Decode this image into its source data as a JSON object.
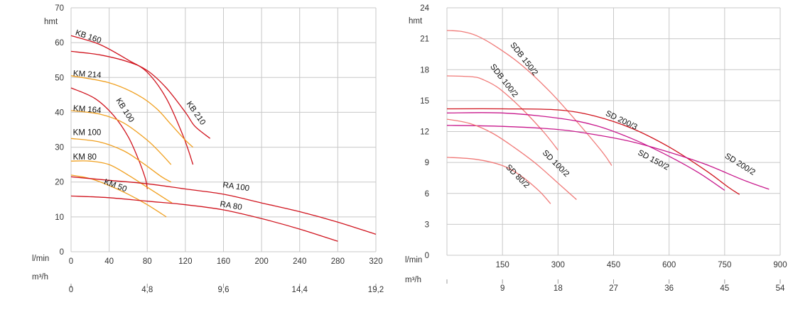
{
  "colors": {
    "red": "#d0141e",
    "orange": "#f0a020",
    "salmon": "#f07a78",
    "magenta": "#c8188c",
    "grid": "#c8c8c8"
  },
  "chart_data": [
    {
      "type": "line",
      "ylabel": "hmt",
      "flow_unit_label": "l/min",
      "m3h_unit_label": "m³/h",
      "xlim": [
        0,
        320
      ],
      "ylim": [
        0,
        70
      ],
      "x_ticks": [
        "0",
        "40",
        "80",
        "120",
        "160",
        "200",
        "240",
        "280",
        "320"
      ],
      "y_ticks": [
        "0",
        "10",
        "20",
        "30",
        "40",
        "50",
        "60",
        "70"
      ],
      "m3h_ticks": [
        "0",
        "4,8",
        "9,6",
        "14,4",
        "19,2"
      ],
      "grid": true,
      "series": [
        {
          "name": "KB 160",
          "color": "red",
          "x": [
            0,
            30,
            60,
            80,
            100,
            118,
            128
          ],
          "y": [
            62,
            59.5,
            55,
            51.5,
            44,
            33,
            25
          ]
        },
        {
          "name": "KB 210",
          "color": "red",
          "x": [
            0,
            30,
            60,
            80,
            100,
            120,
            130,
            146
          ],
          "y": [
            57.5,
            56.5,
            54.5,
            52,
            47,
            40,
            36,
            32.5
          ]
        },
        {
          "name": "KM 214",
          "color": "orange",
          "x": [
            0,
            40,
            70,
            90,
            105,
            120,
            128
          ],
          "y": [
            50.5,
            48.5,
            45,
            41,
            36.5,
            32,
            30
          ]
        },
        {
          "name": "KB 100",
          "color": "red",
          "x": [
            0,
            25,
            45,
            60,
            70,
            78,
            80
          ],
          "y": [
            47,
            44,
            39,
            33,
            27,
            21,
            18
          ]
        },
        {
          "name": "KM 164",
          "color": "orange",
          "x": [
            0,
            30,
            55,
            80,
            95,
            105
          ],
          "y": [
            40.5,
            39.5,
            37,
            32,
            28,
            25
          ]
        },
        {
          "name": "KM 100",
          "color": "orange",
          "x": [
            0,
            30,
            55,
            75,
            95,
            105
          ],
          "y": [
            32.5,
            31.5,
            29,
            25.5,
            21.5,
            20
          ]
        },
        {
          "name": "KM 80",
          "color": "orange",
          "x": [
            0,
            20,
            40,
            60,
            80,
            100,
            106
          ],
          "y": [
            26,
            26,
            25,
            22,
            18.5,
            15,
            14
          ]
        },
        {
          "name": "KM 50",
          "color": "orange",
          "x": [
            0,
            20,
            40,
            60,
            80,
            100
          ],
          "y": [
            22,
            21,
            19,
            16.5,
            13.5,
            10
          ]
        },
        {
          "name": "RA 100",
          "color": "red",
          "x": [
            0,
            40,
            80,
            120,
            160,
            200,
            240,
            280,
            320
          ],
          "y": [
            21.5,
            20.5,
            19.5,
            18,
            16.5,
            14,
            11.5,
            8.5,
            5
          ]
        },
        {
          "name": "RA 80",
          "color": "red",
          "x": [
            0,
            40,
            80,
            120,
            160,
            200,
            240,
            280
          ],
          "y": [
            16,
            15.5,
            14.5,
            13.5,
            12,
            9.5,
            6.5,
            3
          ]
        }
      ],
      "labels": [
        {
          "text": "KB 160",
          "x": 4,
          "y": 62.3,
          "rot": 19
        },
        {
          "text": "KB 210",
          "x": 121,
          "y": 42.5,
          "rot": 55
        },
        {
          "text": "KM 214",
          "x": 2,
          "y": 50.5,
          "rot": 4
        },
        {
          "text": "KB 100",
          "x": 47,
          "y": 43.5,
          "rot": 58
        },
        {
          "text": "KM 164",
          "x": 2,
          "y": 40.5,
          "rot": 5
        },
        {
          "text": "KM 100",
          "x": 2,
          "y": 33.5,
          "rot": 0
        },
        {
          "text": "KM 80",
          "x": 2,
          "y": 26.5,
          "rot": 0
        },
        {
          "text": "KM 50",
          "x": 34,
          "y": 19.5,
          "rot": 20
        },
        {
          "text": "RA 100",
          "x": 159,
          "y": 18.5,
          "rot": 8
        },
        {
          "text": "RA 80",
          "x": 156,
          "y": 13,
          "rot": 9
        }
      ]
    },
    {
      "type": "line",
      "ylabel": "hmt",
      "flow_unit_label": "l/min",
      "m3h_unit_label": "m³/h",
      "xlim": [
        0,
        900
      ],
      "ylim": [
        0,
        24
      ],
      "x_ticks": [
        "",
        "150",
        "300",
        "450",
        "600",
        "750",
        "900"
      ],
      "y_ticks": [
        "0",
        "3",
        "6",
        "9",
        "12",
        "15",
        "18",
        "21",
        "24"
      ],
      "m3h_ticks": [
        "",
        "9",
        "18",
        "27",
        "36",
        "45",
        "54"
      ],
      "grid": true,
      "series": [
        {
          "name": "SDB 150/2",
          "color": "salmon",
          "x": [
            0,
            40,
            80,
            130,
            200,
            280,
            350,
            420,
            445
          ],
          "y": [
            21.8,
            21.7,
            21.3,
            20.3,
            18.5,
            15.8,
            13,
            10,
            8.7
          ]
        },
        {
          "name": "SDB 100/2",
          "color": "salmon",
          "x": [
            0,
            70,
            100,
            140,
            200,
            260,
            300
          ],
          "y": [
            17.4,
            17.3,
            17,
            16.2,
            14.3,
            12,
            10.2
          ]
        },
        {
          "name": "SD 200/3",
          "color": "red",
          "x": [
            0,
            150,
            300,
            400,
            500,
            600,
            700,
            760,
            790
          ],
          "y": [
            14.2,
            14.2,
            14.1,
            13.5,
            12.3,
            10.5,
            8.2,
            6.6,
            5.9
          ]
        },
        {
          "name": "SD 150/2",
          "color": "magenta",
          "x": [
            0,
            150,
            300,
            400,
            500,
            600,
            680,
            750
          ],
          "y": [
            13.8,
            13.8,
            13.3,
            12.6,
            11.3,
            9.6,
            8,
            6.3
          ]
        },
        {
          "name": "SD 200/2",
          "color": "magenta",
          "x": [
            0,
            150,
            300,
            400,
            500,
            600,
            700,
            800,
            870
          ],
          "y": [
            12.6,
            12.5,
            12.2,
            11.7,
            11,
            10,
            8.8,
            7.3,
            6.4
          ]
        },
        {
          "name": "SD 100/2",
          "color": "salmon",
          "x": [
            0,
            60,
            120,
            180,
            240,
            300,
            350
          ],
          "y": [
            13.2,
            12.8,
            11.9,
            10.5,
            8.9,
            7,
            5.4
          ]
        },
        {
          "name": "SD 80/2",
          "color": "salmon",
          "x": [
            0,
            80,
            150,
            200,
            250,
            280
          ],
          "y": [
            9.5,
            9.3,
            8.7,
            7.7,
            6.2,
            5
          ]
        }
      ],
      "labels": [
        {
          "text": "SDB 150/2",
          "x": 170,
          "y": 20.4,
          "rot": 52
        },
        {
          "text": "SDB 100/2",
          "x": 116,
          "y": 18.3,
          "rot": 52
        },
        {
          "text": "SD 200/3",
          "x": 427,
          "y": 13.6,
          "rot": 26
        },
        {
          "text": "SD 150/2",
          "x": 514,
          "y": 9.8,
          "rot": 28
        },
        {
          "text": "SD 200/2",
          "x": 749,
          "y": 9.5,
          "rot": 32
        },
        {
          "text": "SD 100/2",
          "x": 257,
          "y": 9.9,
          "rot": 45
        },
        {
          "text": "SD 80/2",
          "x": 158,
          "y": 8.5,
          "rot": 45
        }
      ]
    }
  ]
}
